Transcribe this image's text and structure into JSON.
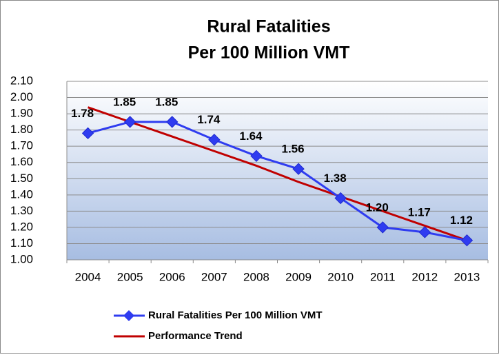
{
  "chart_data": {
    "type": "line",
    "title": [
      "Rural Fatalities",
      "Per 100 Million VMT"
    ],
    "categories": [
      "2004",
      "2005",
      "2006",
      "2007",
      "2008",
      "2009",
      "2010",
      "2011",
      "2012",
      "2013"
    ],
    "series": [
      {
        "name": "Rural Fatalities Per 100 Million VMT",
        "color": "#2f3cf0",
        "marker": "diamond",
        "values": [
          1.78,
          1.85,
          1.85,
          1.74,
          1.64,
          1.56,
          1.38,
          1.2,
          1.17,
          1.12
        ],
        "value_labels": [
          "1.78",
          "1.85",
          "1.85",
          "1.74",
          "1.64",
          "1.56",
          "1.38",
          "1.20",
          "1.17",
          "1.12"
        ]
      },
      {
        "name": "Performance Trend",
        "color": "#c00000",
        "values": [
          1.94,
          1.85,
          1.76,
          1.67,
          1.58,
          1.48,
          1.39,
          1.3,
          1.21,
          1.12
        ]
      }
    ],
    "ylim": [
      1.0,
      2.1
    ],
    "yticks": [
      {
        "value": 1.0,
        "label": "1.00"
      },
      {
        "value": 1.1,
        "label": "1.10"
      },
      {
        "value": 1.2,
        "label": "1.20"
      },
      {
        "value": 1.3,
        "label": "1.30"
      },
      {
        "value": 1.4,
        "label": "1.40"
      },
      {
        "value": 1.5,
        "label": "1.50"
      },
      {
        "value": 1.6,
        "label": "1.60"
      },
      {
        "value": 1.7,
        "label": "1.70"
      },
      {
        "value": 1.8,
        "label": "1.80"
      },
      {
        "value": 1.9,
        "label": "1.90"
      },
      {
        "value": 2.0,
        "label": "2.00"
      },
      {
        "value": 2.1,
        "label": "2.10"
      }
    ],
    "grid": true,
    "legend": "bottom"
  }
}
